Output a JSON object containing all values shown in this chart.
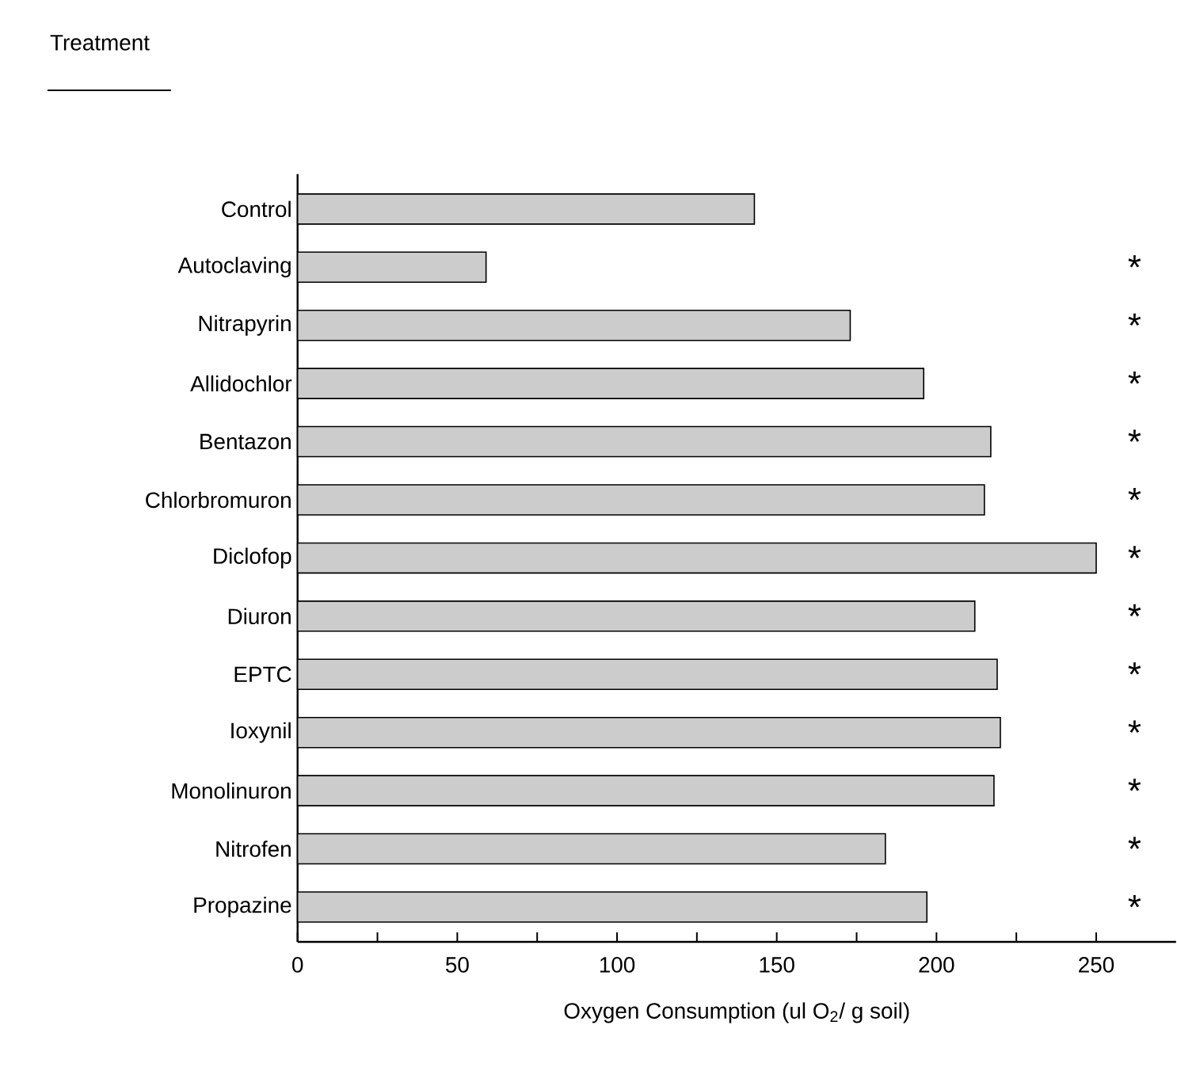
{
  "chart_data": {
    "type": "bar",
    "orientation": "horizontal",
    "xlabel": "Oxygen Consumption (ul O$_{2}$/ g soil)",
    "categories": [
      "Control",
      "Autoclaving",
      "Nitrapyrin",
      "Allidochlor",
      "Bentazon",
      "Chlorbromuron",
      "Diclofop",
      "Diuron",
      "EPTC",
      "Ioxynil",
      "Monolinuron",
      "Nitrofen",
      "Propazine"
    ],
    "values": [
      143,
      59,
      173,
      196,
      217,
      215,
      250,
      212,
      219,
      220,
      218,
      184,
      197
    ],
    "color": "#cccccc",
    "xlim": [
      0,
      275
    ],
    "xticks": [
      0,
      {
        "value": 25,
        "label": null
      },
      50,
      {
        "value": 75,
        "label": null
      },
      100,
      {
        "value": 125,
        "label": null
      },
      150,
      {
        "value": 175,
        "label": null
      },
      200,
      {
        "value": 225,
        "label": null
      },
      250
    ],
    "annotations": [
      "Treatment",
      "*",
      "*",
      "*",
      "*",
      "*",
      "*",
      "*",
      "*",
      "*",
      "*",
      "*",
      "*"
    ]
  }
}
